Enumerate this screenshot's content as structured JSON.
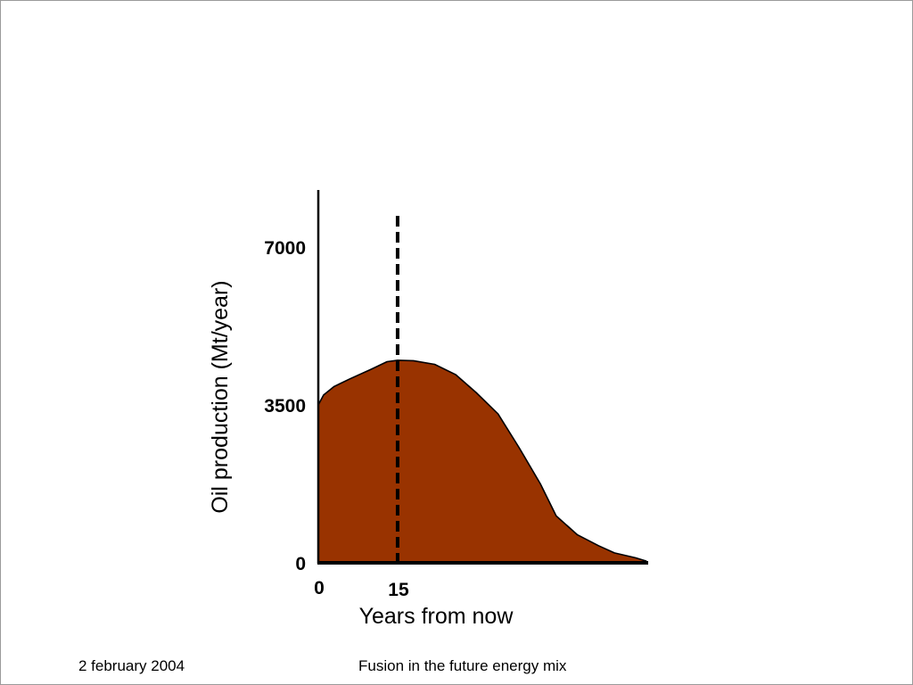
{
  "chart_data": {
    "type": "area",
    "title": "",
    "xlabel": "Years from now",
    "ylabel": "Oil production (Mt/year)",
    "ylim": [
      0,
      8400
    ],
    "xlim": [
      0,
      65
    ],
    "y_ticks": [
      {
        "value": 0,
        "label": "0"
      },
      {
        "value": 3500,
        "label": "3500"
      },
      {
        "value": 7000,
        "label": "7000"
      }
    ],
    "x_ticks": [
      {
        "value": 0,
        "label": "0"
      },
      {
        "value": 15,
        "label": "15"
      }
    ],
    "marker_line": {
      "x": 15,
      "style": "dashed",
      "color": "#000000"
    },
    "fill_color": "#993300",
    "series": [
      {
        "x": [
          0,
          1,
          3,
          6,
          10,
          13,
          15,
          18,
          22,
          26,
          30,
          34,
          38,
          42,
          45,
          49,
          53,
          56,
          60,
          62
        ],
        "values": [
          3500,
          3720,
          3910,
          4080,
          4290,
          4460,
          4490,
          4480,
          4400,
          4170,
          3760,
          3300,
          2550,
          1750,
          1040,
          620,
          380,
          220,
          110,
          40
        ]
      }
    ],
    "grid": false,
    "legend": "none"
  },
  "footer": {
    "date": "2 february 2004",
    "title": "Fusion in the future energy mix"
  }
}
